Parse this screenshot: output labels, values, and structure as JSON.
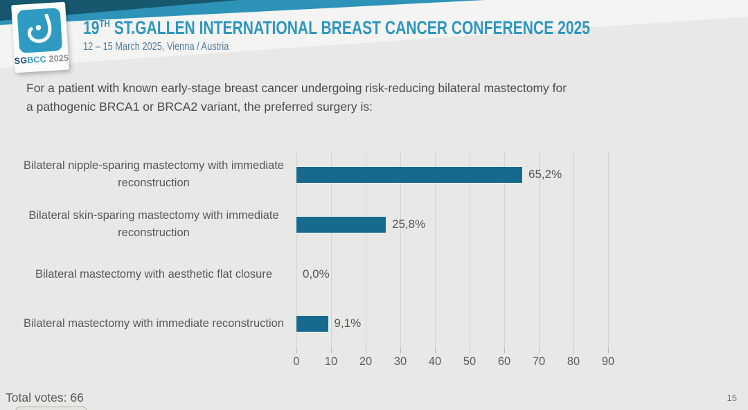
{
  "header": {
    "logo": {
      "sg": "SG",
      "bcc": "BCC",
      "year": "2025"
    },
    "title": {
      "number": "19",
      "superscript": "TH",
      "rest": " ST.GALLEN INTERNATIONAL BREAST CANCER CONFERENCE 2025"
    },
    "subtitle": "12 – 15 March 2025, Vienna / Austria"
  },
  "question": {
    "line1": "For a patient with known early-stage breast cancer undergoing risk-reducing bilateral mastectomy for",
    "line2": "a pathogenic BRCA1 or BRCA2 variant, the preferred surgery is:"
  },
  "chart_data": {
    "type": "bar",
    "orientation": "horizontal",
    "title": "",
    "xlabel": "",
    "ylabel": "",
    "categories": [
      "Bilateral nipple-sparing mastectomy with immediate reconstruction",
      "Bilateral skin-sparing mastectomy with immediate reconstruction",
      "Bilateral mastectomy with aesthetic flat closure",
      "Bilateral mastectomy with immediate reconstruction"
    ],
    "values": [
      65.2,
      25.8,
      0.0,
      9.1
    ],
    "value_labels": [
      "65,2%",
      "25,8%",
      "0,0%",
      "9,1%"
    ],
    "x_ticks": [
      0,
      10,
      20,
      30,
      40,
      50,
      60,
      70,
      80,
      90
    ],
    "xlim": [
      0,
      100
    ],
    "grid": true,
    "legend_position": "none",
    "bar_color": "#176a8e"
  },
  "footer": {
    "total_votes": "Total votes: 66",
    "page_number": "15"
  },
  "colors": {
    "accent_blue": "#2f9bc3",
    "dark_teal": "#17586e",
    "band_blue": "#2e93b8",
    "bar": "#176a8e",
    "background": "#e8e9e7"
  }
}
